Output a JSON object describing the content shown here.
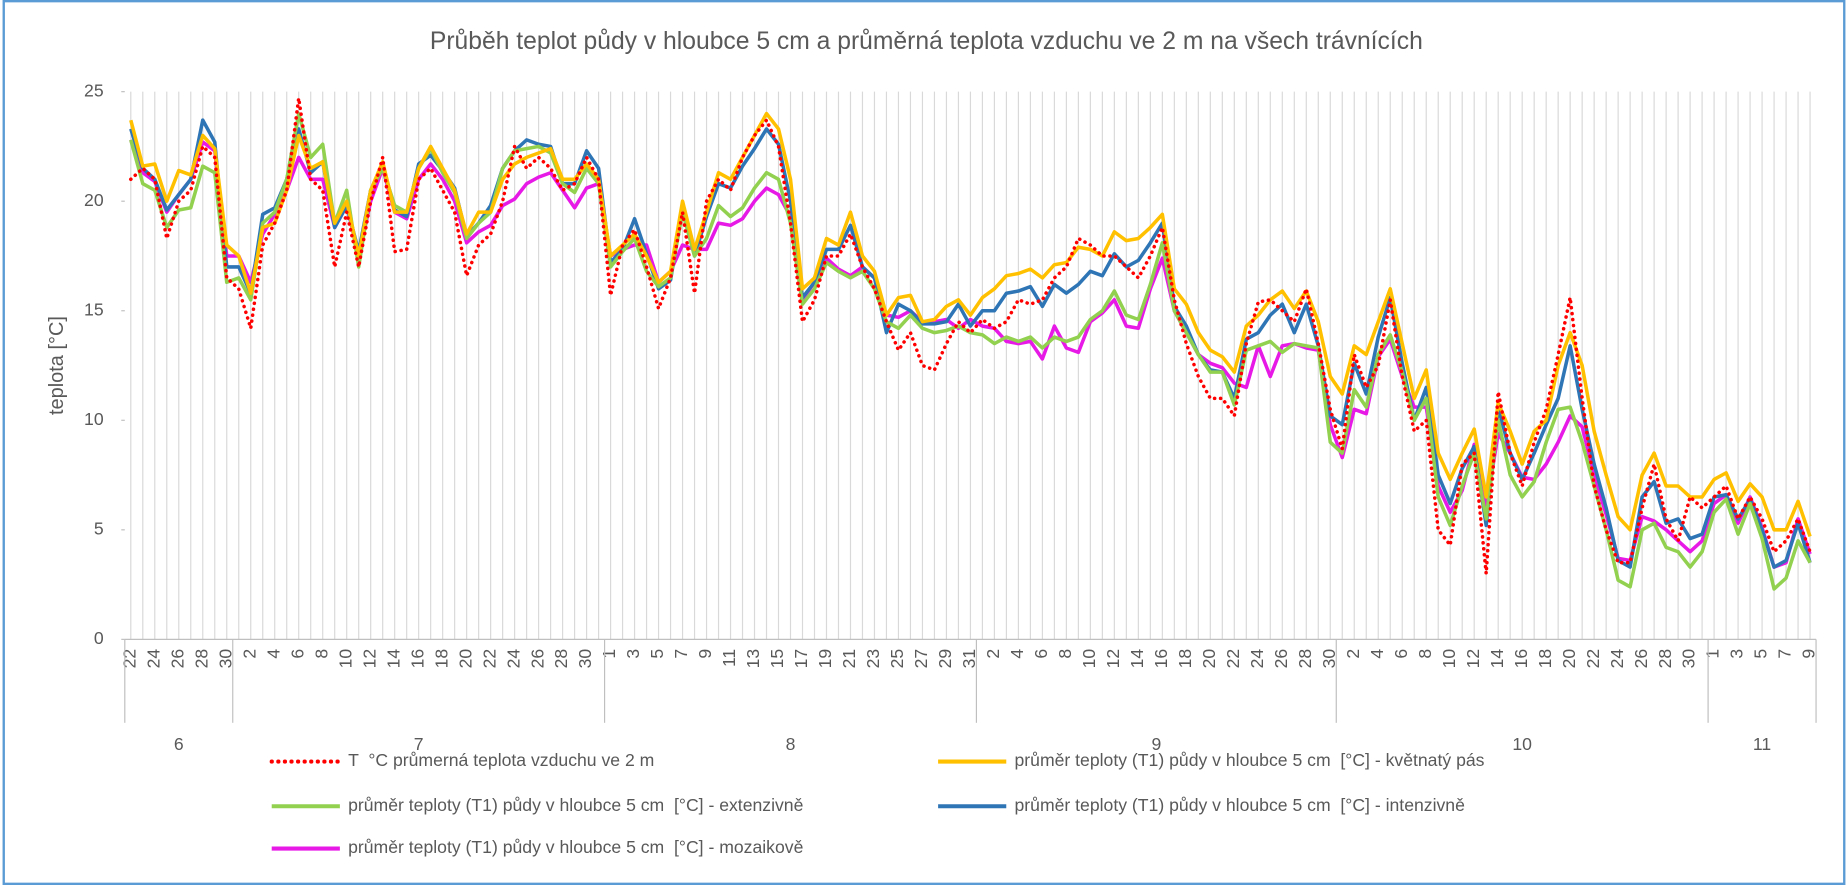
{
  "chart_data": {
    "type": "line",
    "title": "Průběh teplot půdy v hloubce 5 cm a průměrná teplota vzduchu ve 2 m na všech trávnících",
    "y_label": "teplota [°C]",
    "ylim": [
      0,
      25
    ],
    "yticks": [
      0,
      5,
      10,
      15,
      20,
      25
    ],
    "grid": "x",
    "categories": [
      "22",
      null,
      "24",
      null,
      "26",
      null,
      "28",
      null,
      "30",
      null,
      "2",
      null,
      "4",
      null,
      "6",
      null,
      "8",
      null,
      "10",
      null,
      "12",
      null,
      "14",
      null,
      "16",
      null,
      "18",
      null,
      "20",
      null,
      "22",
      null,
      "24",
      null,
      "26",
      null,
      "28",
      null,
      "30",
      null,
      "1",
      null,
      "3",
      null,
      "5",
      null,
      "7",
      null,
      "9",
      null,
      "11",
      null,
      "13",
      null,
      "15",
      null,
      "17",
      null,
      "19",
      null,
      "21",
      null,
      "23",
      null,
      "25",
      null,
      "27",
      null,
      "29",
      null,
      "31",
      null,
      "2",
      null,
      "4",
      null,
      "6",
      null,
      "8",
      null,
      "10",
      null,
      "12",
      null,
      "14",
      null,
      "16",
      null,
      "18",
      null,
      "20",
      null,
      "22",
      null,
      "24",
      null,
      "26",
      null,
      "28",
      null,
      "30",
      null,
      "2",
      null,
      "4",
      null,
      "6",
      null,
      "8",
      null,
      "10",
      null,
      "12",
      null,
      "14",
      null,
      "16",
      null,
      "18",
      null,
      "20",
      null,
      "22",
      null,
      "24",
      null,
      "26",
      null,
      "28",
      null,
      "30",
      null,
      "1",
      null,
      "3",
      null,
      "5",
      null,
      "7",
      null,
      "9"
    ],
    "months": [
      "6",
      "7",
      "8",
      "9",
      "10",
      "11"
    ],
    "series": [
      {
        "name": "T  °C průmerná teplota vzduchu ve 2 m",
        "color": "#ff0000",
        "dash": "dotted",
        "values": [
          21,
          21.5,
          21,
          18.3,
          20,
          20.5,
          22.5,
          22,
          16.5,
          16,
          14.2,
          18,
          19,
          20.5,
          24.7,
          21,
          20.5,
          17,
          19.5,
          17,
          20,
          22,
          17.7,
          17.8,
          21,
          21.5,
          20.5,
          19.5,
          16.6,
          18,
          18.5,
          20,
          22.5,
          21.5,
          22,
          21.5,
          20.5,
          20.8,
          22,
          21,
          15.7,
          18,
          18.7,
          17,
          15.1,
          16.5,
          19.5,
          15.8,
          20,
          21,
          20.5,
          22,
          23,
          23.7,
          22.5,
          19,
          14.5,
          15.5,
          17.5,
          17.5,
          18.5,
          17,
          16,
          14.5,
          13.2,
          14,
          12.5,
          12.3,
          13.5,
          14.5,
          14,
          14.6,
          14.2,
          14.5,
          15.5,
          15.3,
          15.5,
          16.5,
          17,
          18.3,
          18,
          17.5,
          17.5,
          17,
          16.5,
          17.5,
          18.8,
          15.5,
          13.5,
          12,
          11,
          11,
          10.2,
          13.5,
          15.4,
          15.5,
          15,
          14.5,
          16,
          13.5,
          10.5,
          8.7,
          13,
          11.5,
          12.5,
          15.5,
          12,
          9.5,
          10,
          5,
          4.3,
          8,
          8.5,
          3,
          11.3,
          8.5,
          7,
          9,
          10.5,
          13,
          15.6,
          11,
          7,
          5,
          3.5,
          3.5,
          6,
          8,
          5.5,
          4.5,
          6.5,
          6,
          6.5,
          7,
          5.5,
          6.5,
          5.5,
          4,
          4.5,
          5.5,
          4
        ]
      },
      {
        "name": "průměr teploty (T1) půdy v hloubce 5 cm  [°C] - květnatý pás",
        "color": "#ffc000",
        "dash": "solid",
        "values": [
          23.7,
          21.6,
          21.7,
          20,
          21.4,
          21.2,
          23,
          22.4,
          18,
          17.5,
          15.8,
          18.8,
          19,
          20.5,
          23,
          21.5,
          21.8,
          19,
          20,
          17.5,
          20.5,
          21.8,
          19.5,
          19.5,
          21.5,
          22.5,
          21.5,
          20.5,
          18.5,
          19.5,
          19.5,
          21,
          21.7,
          22,
          22.2,
          22.4,
          21,
          21,
          21.7,
          21,
          17.5,
          18,
          18.5,
          17.5,
          16.3,
          16.8,
          20,
          17.8,
          19.5,
          21.3,
          21,
          22,
          23,
          24,
          23.3,
          21,
          16,
          16.5,
          18.3,
          18,
          19.5,
          17.5,
          16.8,
          14.8,
          15.6,
          15.7,
          14.5,
          14.6,
          15.2,
          15.5,
          14.8,
          15.6,
          16,
          16.6,
          16.7,
          16.9,
          16.5,
          17.1,
          17.2,
          17.9,
          17.8,
          17.5,
          18.6,
          18.2,
          18.3,
          18.8,
          19.4,
          16,
          15.3,
          14,
          13.2,
          12.9,
          12.2,
          14.3,
          14.8,
          15.5,
          15.9,
          15.1,
          15.9,
          14.5,
          12,
          11.2,
          13.4,
          13,
          14.5,
          16,
          13.5,
          11,
          12.3,
          8.5,
          7.3,
          8.5,
          9.6,
          6.5,
          10.8,
          9.5,
          8,
          9.5,
          10,
          12.5,
          14,
          12.5,
          9.5,
          7.5,
          5.6,
          5,
          7.5,
          8.5,
          7,
          7,
          6.5,
          6.5,
          7.3,
          7.6,
          6.3,
          7.1,
          6.5,
          5,
          5,
          6.3,
          4.7
        ]
      },
      {
        "name": "průměr teploty (T1) půdy v hloubce 5 cm  [°C] - extenzivně",
        "color": "#92d050",
        "dash": "solid",
        "values": [
          22.8,
          20.8,
          20.5,
          18.8,
          19.6,
          19.7,
          21.6,
          21.3,
          16.3,
          16.5,
          15.5,
          19,
          19.5,
          21,
          24,
          22,
          22.6,
          19,
          20.5,
          17,
          20.5,
          21.5,
          19.8,
          19.5,
          21.5,
          22.4,
          21.3,
          20.4,
          18.3,
          19,
          19.5,
          21.5,
          22.3,
          22.4,
          22.5,
          22.2,
          20.8,
          20.4,
          21.5,
          20.8,
          17,
          17.7,
          18.3,
          16.8,
          16.1,
          16.5,
          19.5,
          17.5,
          18.3,
          19.8,
          19.3,
          19.7,
          20.6,
          21.3,
          21,
          19,
          15.3,
          16,
          17.2,
          16.8,
          16.5,
          16.8,
          16,
          14.5,
          14.2,
          14.8,
          14.2,
          14,
          14.1,
          14.3,
          14,
          13.9,
          13.5,
          13.8,
          13.6,
          13.8,
          13.3,
          13.8,
          13.6,
          13.8,
          14.6,
          15,
          15.9,
          14.8,
          14.6,
          16.2,
          18.1,
          15,
          14,
          13,
          12.2,
          12.2,
          10.7,
          13.2,
          13.4,
          13.6,
          13.1,
          13.5,
          13.4,
          13.3,
          9,
          8.5,
          11.4,
          10.6,
          13,
          13.9,
          12.2,
          10,
          11,
          6.5,
          5.2,
          7,
          8.5,
          5.5,
          10,
          7.5,
          6.5,
          7.2,
          9,
          10.5,
          10.6,
          9,
          7,
          5,
          2.7,
          2.4,
          5,
          5.3,
          4.2,
          4,
          3.3,
          4,
          5.8,
          6.4,
          4.8,
          6.2,
          4.6,
          2.3,
          2.8,
          4.5,
          3.5
        ]
      },
      {
        "name": "průměr teploty (T1) půdy v hloubce 5 cm  [°C] - intenzivně",
        "color": "#2e75b6",
        "dash": "solid",
        "values": [
          23.3,
          21.5,
          21,
          19.6,
          20.3,
          21,
          23.7,
          22.7,
          17,
          17,
          15.8,
          19.4,
          19.7,
          21,
          23.3,
          21.3,
          21.8,
          18.8,
          19.8,
          17.7,
          20.5,
          21.7,
          19.6,
          19.3,
          21.7,
          22.1,
          21.4,
          20.6,
          18.4,
          19,
          19.8,
          21.5,
          22.3,
          22.8,
          22.6,
          22.5,
          20.8,
          20.8,
          22.3,
          21.5,
          17.2,
          17.8,
          19.2,
          17.6,
          16,
          16.4,
          19.7,
          17.5,
          19.3,
          20.8,
          20.6,
          21.6,
          22.4,
          23.3,
          22.6,
          20,
          15.6,
          16.3,
          17.8,
          17.8,
          18.9,
          17,
          16.5,
          14,
          15.3,
          15,
          14.4,
          14.4,
          14.5,
          15.3,
          14.3,
          15,
          15,
          15.8,
          15.9,
          16.1,
          15.2,
          16.2,
          15.8,
          16.2,
          16.8,
          16.6,
          17.6,
          17,
          17.3,
          18.1,
          19,
          15.2,
          14.3,
          13,
          12.3,
          12.2,
          11,
          13.7,
          14,
          14.8,
          15.3,
          14,
          15.3,
          13.4,
          10.2,
          9.8,
          12.6,
          11.2,
          13.8,
          15.6,
          12.6,
          10,
          11.5,
          7.5,
          6.2,
          7.8,
          8.8,
          5.2,
          10.6,
          8.5,
          7.3,
          8.5,
          9.8,
          11,
          13.4,
          10.5,
          8,
          6,
          3.6,
          3.3,
          6.5,
          7.2,
          5.3,
          5.5,
          4.6,
          4.8,
          6.5,
          6.6,
          5.5,
          6.4,
          5,
          3.3,
          3.6,
          5.3,
          3.5
        ]
      },
      {
        "name": "průměr teploty (T1) půdy v hloubce 5 cm  [°C] - mozaikově",
        "color": "#e619e6",
        "dash": "solid",
        "values": [
          22.8,
          21.3,
          20.9,
          19.5,
          20.3,
          21,
          22.7,
          22.3,
          17.5,
          17.5,
          16.3,
          18.5,
          19.4,
          20.5,
          22,
          21,
          21,
          18.8,
          19.8,
          17.5,
          20,
          21.5,
          19.5,
          19.2,
          21,
          21.7,
          21,
          20,
          18.1,
          18.6,
          18.9,
          19.8,
          20.1,
          20.8,
          21.1,
          21.3,
          20.5,
          19.7,
          20.6,
          20.8,
          17.5,
          17.8,
          18,
          18,
          16.3,
          16.8,
          18,
          17.8,
          17.8,
          19,
          18.9,
          19.2,
          20,
          20.6,
          20.3,
          19.3,
          15.5,
          16.3,
          17.4,
          16.9,
          16.6,
          17,
          16.5,
          14.8,
          14.7,
          15,
          14.5,
          14.5,
          14.6,
          14.2,
          14.6,
          14.3,
          14.2,
          13.6,
          13.5,
          13.6,
          12.8,
          14.3,
          13.3,
          13.1,
          14.5,
          14.9,
          15.5,
          14.3,
          14.2,
          16,
          17.4,
          15,
          14,
          13,
          12.6,
          12.4,
          11.7,
          11.5,
          13.4,
          12,
          13.4,
          13.5,
          13.3,
          13.2,
          9.8,
          8.3,
          10.5,
          10.3,
          12.9,
          13.7,
          12,
          10.6,
          10.6,
          7,
          5.8,
          6.8,
          8.9,
          6,
          9.4,
          8.5,
          7.4,
          7.3,
          8,
          9,
          10.2,
          9.7,
          7.5,
          5.7,
          3.7,
          3.6,
          5.6,
          5.4,
          5,
          4.5,
          4,
          4.5,
          6.2,
          6.6,
          5.3,
          6.5,
          5.1,
          3.3,
          3.5,
          5.5,
          3.9
        ]
      }
    ]
  }
}
